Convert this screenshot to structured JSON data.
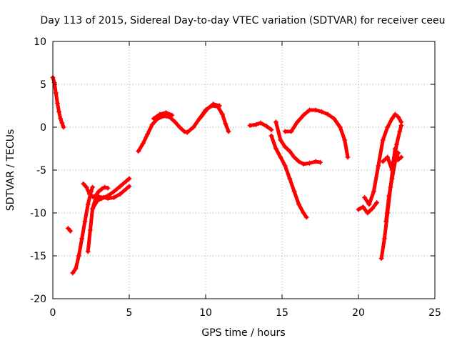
{
  "chart_data": {
    "type": "scatter",
    "title": "Day 113 of 2015, Sidereal Day-to-day VTEC variation (SDTVAR) for receiver ceeu",
    "xlabel": "GPS time / hours",
    "ylabel": "SDTVAR / TECUs",
    "xlim": [
      0,
      25
    ],
    "ylim": [
      -20,
      10
    ],
    "xticks": [
      0,
      5,
      10,
      15,
      20,
      25
    ],
    "yticks": [
      -20,
      -15,
      -10,
      -5,
      0,
      5,
      10
    ],
    "grid": true,
    "marker": "plus",
    "color": "#ff0000",
    "series": [
      {
        "x": [
          0.0,
          0.1,
          0.2,
          0.3,
          0.4,
          0.5,
          0.6,
          0.7
        ],
        "y": [
          5.8,
          5.2,
          4.0,
          2.8,
          1.8,
          1.0,
          0.5,
          0.0
        ]
      },
      {
        "x": [
          1.0,
          1.15
        ],
        "y": [
          -11.8,
          -12.1
        ]
      },
      {
        "x": [
          1.3,
          1.5,
          1.7,
          1.9,
          2.1,
          2.3,
          2.5,
          2.6
        ],
        "y": [
          -17.0,
          -16.5,
          -15.0,
          -13.0,
          -11.0,
          -9.0,
          -7.5,
          -7.0
        ]
      },
      {
        "x": [
          2.0,
          2.2,
          2.4,
          2.6,
          2.8,
          3.0,
          3.2,
          3.4,
          3.6
        ],
        "y": [
          -6.6,
          -7.0,
          -7.8,
          -8.1,
          -8.0,
          -7.5,
          -7.2,
          -7.0,
          -7.1
        ]
      },
      {
        "x": [
          2.3,
          2.45,
          2.6,
          2.8,
          3.0,
          3.3,
          3.6,
          4.0,
          4.4,
          4.8,
          5.0
        ],
        "y": [
          -14.5,
          -12.0,
          -9.5,
          -8.3,
          -8.1,
          -8.2,
          -8.3,
          -8.2,
          -7.8,
          -7.2,
          -6.9
        ]
      },
      {
        "x": [
          2.6,
          2.9,
          3.2,
          3.6,
          4.0,
          4.4,
          4.8,
          5.0
        ],
        "y": [
          -9.5,
          -8.6,
          -8.3,
          -8.0,
          -7.5,
          -6.9,
          -6.3,
          -6.0
        ]
      },
      {
        "x": [
          5.6,
          5.9,
          6.2,
          6.5,
          6.8,
          7.1,
          7.4,
          7.7,
          8.0,
          8.3,
          8.6,
          8.8
        ],
        "y": [
          -2.8,
          -1.9,
          -0.8,
          0.3,
          0.9,
          1.2,
          1.3,
          1.1,
          0.6,
          0.0,
          -0.5,
          -0.6
        ]
      },
      {
        "x": [
          6.6,
          7.0,
          7.4,
          7.8
        ],
        "y": [
          1.0,
          1.5,
          1.7,
          1.4
        ]
      },
      {
        "x": [
          8.8,
          9.2,
          9.6,
          10.0,
          10.4,
          10.8,
          11.1,
          11.3,
          11.5
        ],
        "y": [
          -0.6,
          0.0,
          1.0,
          2.0,
          2.5,
          2.4,
          1.5,
          0.4,
          -0.5
        ]
      },
      {
        "x": [
          9.7,
          10.1,
          10.5,
          10.9
        ],
        "y": [
          1.2,
          2.1,
          2.7,
          2.5
        ]
      },
      {
        "x": [
          12.9,
          13.3,
          13.6,
          14.0,
          14.3
        ],
        "y": [
          0.2,
          0.3,
          0.5,
          0.1,
          -0.3
        ]
      },
      {
        "x": [
          14.3,
          14.6,
          14.9,
          15.2,
          15.5,
          15.8,
          16.1,
          16.4,
          16.6
        ],
        "y": [
          -1.0,
          -2.5,
          -3.5,
          -4.5,
          -6.0,
          -7.5,
          -9.0,
          -10.0,
          -10.5
        ]
      },
      {
        "x": [
          14.6,
          14.9,
          15.2,
          15.5,
          15.8,
          16.1,
          16.4,
          16.8,
          17.2,
          17.5
        ],
        "y": [
          0.6,
          -1.5,
          -2.3,
          -2.8,
          -3.5,
          -4.0,
          -4.3,
          -4.2,
          -4.0,
          -4.1
        ]
      },
      {
        "x": [
          15.2,
          15.6,
          16.0,
          16.4,
          16.8,
          17.2,
          17.6,
          18.0,
          18.4,
          18.8,
          19.1,
          19.3
        ],
        "y": [
          -0.5,
          -0.5,
          0.6,
          1.4,
          2.0,
          2.0,
          1.8,
          1.5,
          1.0,
          0.0,
          -1.5,
          -3.5
        ]
      },
      {
        "x": [
          20.0,
          20.3,
          20.6,
          20.9,
          21.2
        ],
        "y": [
          -9.6,
          -9.3,
          -10.0,
          -9.5,
          -8.8
        ]
      },
      {
        "x": [
          20.4,
          20.7,
          21.0,
          21.3,
          21.6,
          21.9,
          22.2,
          22.4,
          22.6,
          22.8
        ],
        "y": [
          -8.2,
          -9.0,
          -7.5,
          -4.5,
          -1.5,
          0.0,
          1.0,
          1.5,
          1.2,
          0.6
        ]
      },
      {
        "x": [
          21.5,
          21.7,
          21.9,
          22.1,
          22.3,
          22.5,
          22.7,
          22.8
        ],
        "y": [
          -15.3,
          -13.0,
          -10.0,
          -7.0,
          -4.0,
          -2.0,
          -0.5,
          0.2
        ]
      },
      {
        "x": [
          21.6,
          21.9,
          22.2,
          22.4,
          22.6,
          22.8
        ],
        "y": [
          -4.0,
          -3.5,
          -5.0,
          -2.5,
          -3.8,
          -3.5
        ]
      },
      {
        "x": [
          21.8,
          22.0,
          22.2,
          22.4,
          22.6
        ],
        "y": [
          -11.0,
          -8.0,
          -6.0,
          -4.0,
          -3.0
        ]
      }
    ]
  }
}
